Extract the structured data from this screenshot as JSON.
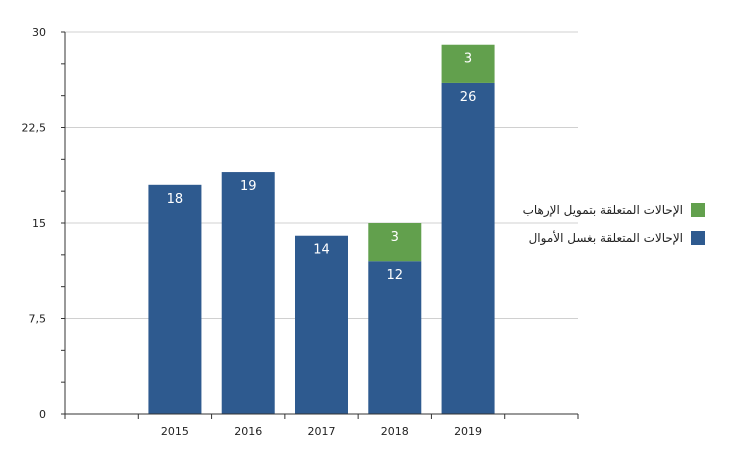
{
  "chart_data": {
    "type": "bar",
    "stacked": true,
    "categories": [
      "2015",
      "2016",
      "2017",
      "2018",
      "2019"
    ],
    "series": [
      {
        "name": "الإحالات المتعلقة بغسل الأموال",
        "color": "#2e5a8f",
        "values": [
          18,
          19,
          14,
          12,
          26
        ]
      },
      {
        "name": "الإحالات المتعلقة بتمويل الإرهاب",
        "color": "#62a04d",
        "values": [
          0,
          0,
          0,
          3,
          3
        ]
      }
    ],
    "ylim": [
      0,
      30
    ],
    "yticks": [
      0,
      7.5,
      15,
      22.5,
      30
    ],
    "ytick_labels": [
      "0",
      "7,5",
      "15",
      "22,5",
      "30"
    ],
    "grid": true,
    "legend_position": "right"
  }
}
